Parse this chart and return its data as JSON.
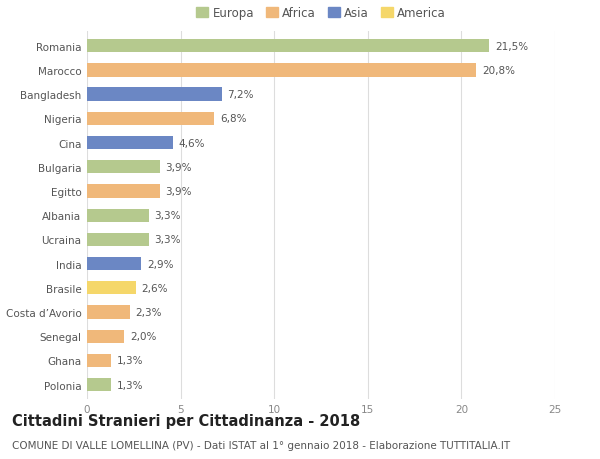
{
  "categories": [
    "Romania",
    "Marocco",
    "Bangladesh",
    "Nigeria",
    "Cina",
    "Bulgaria",
    "Egitto",
    "Albania",
    "Ucraina",
    "India",
    "Brasile",
    "Costa d’Avorio",
    "Senegal",
    "Ghana",
    "Polonia"
  ],
  "values": [
    21.5,
    20.8,
    7.2,
    6.8,
    4.6,
    3.9,
    3.9,
    3.3,
    3.3,
    2.9,
    2.6,
    2.3,
    2.0,
    1.3,
    1.3
  ],
  "labels": [
    "21,5%",
    "20,8%",
    "7,2%",
    "6,8%",
    "4,6%",
    "3,9%",
    "3,9%",
    "3,3%",
    "3,3%",
    "2,9%",
    "2,6%",
    "2,3%",
    "2,0%",
    "1,3%",
    "1,3%"
  ],
  "continents": [
    "Europa",
    "Africa",
    "Asia",
    "Africa",
    "Asia",
    "Europa",
    "Africa",
    "Europa",
    "Europa",
    "Asia",
    "America",
    "Africa",
    "Africa",
    "Africa",
    "Europa"
  ],
  "continent_colors": {
    "Europa": "#b5c98e",
    "Africa": "#f0b87a",
    "Asia": "#6b87c4",
    "America": "#f5d76a"
  },
  "legend_order": [
    "Europa",
    "Africa",
    "Asia",
    "America"
  ],
  "xlim": [
    0,
    25
  ],
  "xticks": [
    0,
    5,
    10,
    15,
    20,
    25
  ],
  "title": "Cittadini Stranieri per Cittadinanza - 2018",
  "subtitle": "COMUNE DI VALLE LOMELLINA (PV) - Dati ISTAT al 1° gennaio 2018 - Elaborazione TUTTITALIA.IT",
  "title_fontsize": 10.5,
  "subtitle_fontsize": 7.5,
  "label_fontsize": 7.5,
  "tick_fontsize": 7.5,
  "legend_fontsize": 8.5,
  "background_color": "#ffffff",
  "grid_color": "#dddddd",
  "bar_height": 0.55
}
